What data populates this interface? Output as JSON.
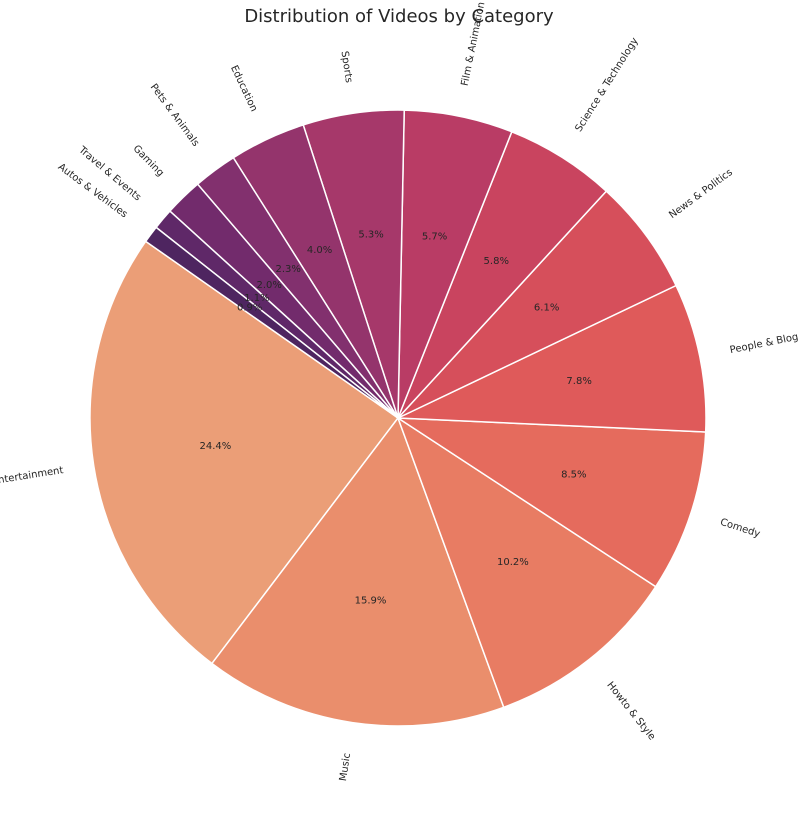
{
  "chart_data": {
    "type": "pie",
    "title": "Distribution of Videos by Category",
    "start_angle_deg": 145,
    "direction": "counterclockwise",
    "slices": [
      {
        "label": "Entertainment",
        "value": 24.4,
        "pct_label": "24.4%",
        "color": "#eb9e77"
      },
      {
        "label": "Music",
        "value": 15.9,
        "pct_label": "15.9%",
        "color": "#ea8e6c"
      },
      {
        "label": "Howto & Style",
        "value": 10.2,
        "pct_label": "10.2%",
        "color": "#e87c63"
      },
      {
        "label": "Comedy",
        "value": 8.5,
        "pct_label": "8.5%",
        "color": "#e56b5d"
      },
      {
        "label": "People & Blogs",
        "value": 7.8,
        "pct_label": "7.8%",
        "color": "#df5a5a"
      },
      {
        "label": "News & Politics",
        "value": 6.1,
        "pct_label": "6.1%",
        "color": "#d64f5b"
      },
      {
        "label": "Science & Technology",
        "value": 5.8,
        "pct_label": "5.8%",
        "color": "#c9445f"
      },
      {
        "label": "Film & Animation",
        "value": 5.7,
        "pct_label": "5.7%",
        "color": "#b93c65"
      },
      {
        "label": "Sports",
        "value": 5.3,
        "pct_label": "5.3%",
        "color": "#a6386a"
      },
      {
        "label": "Education",
        "value": 4.0,
        "pct_label": "4.0%",
        "color": "#94346c"
      },
      {
        "label": "Pets & Animals",
        "value": 2.3,
        "pct_label": "2.3%",
        "color": "#82306e"
      },
      {
        "label": "Gaming",
        "value": 2.0,
        "pct_label": "2.0%",
        "color": "#722b6c"
      },
      {
        "label": "Travel & Events",
        "value": 1.1,
        "pct_label": "1.1%",
        "color": "#5f2868"
      },
      {
        "label": "Autos & Vehicles",
        "value": 0.9,
        "pct_label": "0.9%",
        "color": "#4e2560"
      }
    ]
  }
}
